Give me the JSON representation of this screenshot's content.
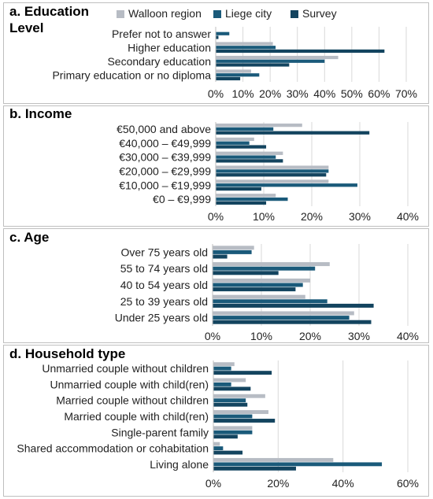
{
  "legend": {
    "entries": [
      {
        "name": "Walloon region",
        "color": "#b7bcc4"
      },
      {
        "name": "Liege city",
        "color": "#1a5a7a"
      },
      {
        "name": "Survey",
        "color": "#13445f"
      }
    ]
  },
  "chart_data": [
    {
      "type": "bar",
      "orientation": "horizontal",
      "title": "a. Education Level",
      "categories": [
        "Prefer not to answer",
        "Higher education",
        "Secondary education",
        "Primary education or no diploma"
      ],
      "series": [
        {
          "name": "Walloon region",
          "values": [
            null,
            21,
            45,
            13
          ]
        },
        {
          "name": "Liege city",
          "values": [
            5,
            22,
            40,
            16
          ]
        },
        {
          "name": "Survey",
          "values": [
            1,
            62,
            27,
            9
          ]
        }
      ],
      "xlim": [
        0,
        70
      ],
      "ticks": [
        0,
        10,
        20,
        30,
        40,
        50,
        60,
        70
      ],
      "tick_labels": [
        "0%",
        "10%",
        "20%",
        "30%",
        "40%",
        "50%",
        "60%",
        "70%"
      ],
      "grid": true
    },
    {
      "type": "bar",
      "orientation": "horizontal",
      "title": "b. Income",
      "categories": [
        "€50,000 and above",
        "€40,000 – €49,999",
        "€30,000 – €39,999",
        "€20,000 – €29,999",
        "€10,000 – €19,999",
        "€0 – €9,999"
      ],
      "series": [
        {
          "name": "Walloon region",
          "values": [
            18,
            8,
            14,
            23.5,
            23.5,
            12.5
          ]
        },
        {
          "name": "Liege city",
          "values": [
            12,
            7,
            12.5,
            23.5,
            29.5,
            15
          ]
        },
        {
          "name": "Survey",
          "values": [
            32,
            10.5,
            14,
            23,
            9.5,
            10.5
          ]
        }
      ],
      "xlim": [
        0,
        40
      ],
      "ticks": [
        0,
        10,
        20,
        30,
        40
      ],
      "tick_labels": [
        "0%",
        "10%",
        "20%",
        "30%",
        "40%"
      ],
      "grid": true
    },
    {
      "type": "bar",
      "orientation": "horizontal",
      "title": "c. Age",
      "categories": [
        "Over 75 years old",
        "55 to 74 years old",
        "40 to 54 years old",
        "25 to 39 years old",
        "Under 25 years old"
      ],
      "series": [
        {
          "name": "Walloon region",
          "values": [
            8.5,
            24,
            20,
            19,
            29
          ]
        },
        {
          "name": "Liege city",
          "values": [
            8,
            21,
            18.5,
            23.5,
            28
          ]
        },
        {
          "name": "Survey",
          "values": [
            3,
            13.5,
            17,
            33,
            32.5
          ]
        }
      ],
      "xlim": [
        0,
        40
      ],
      "ticks": [
        0,
        10,
        20,
        30,
        40
      ],
      "tick_labels": [
        "0%",
        "10%",
        "20%",
        "30%",
        "40%"
      ],
      "grid": true
    },
    {
      "type": "bar",
      "orientation": "horizontal",
      "title": "d. Household type",
      "categories": [
        "Unmarried couple without children",
        "Unmarried couple with child(ren)",
        "Married couple without children",
        "Married couple with child(ren)",
        "Single-parent family",
        "Shared accommodation or cohabitation",
        "Living alone"
      ],
      "series": [
        {
          "name": "Walloon region",
          "values": [
            6.5,
            10,
            16,
            17,
            12,
            2,
            37
          ]
        },
        {
          "name": "Liege city",
          "values": [
            5.5,
            5.5,
            10,
            12,
            12,
            3,
            52
          ]
        },
        {
          "name": "Survey",
          "values": [
            18,
            11.5,
            10.5,
            19,
            7.5,
            9,
            25.5
          ]
        }
      ],
      "xlim": [
        0,
        60
      ],
      "ticks": [
        0,
        20,
        40,
        60
      ],
      "tick_labels": [
        "0%",
        "20%",
        "40%",
        "60%"
      ],
      "grid": true
    }
  ]
}
